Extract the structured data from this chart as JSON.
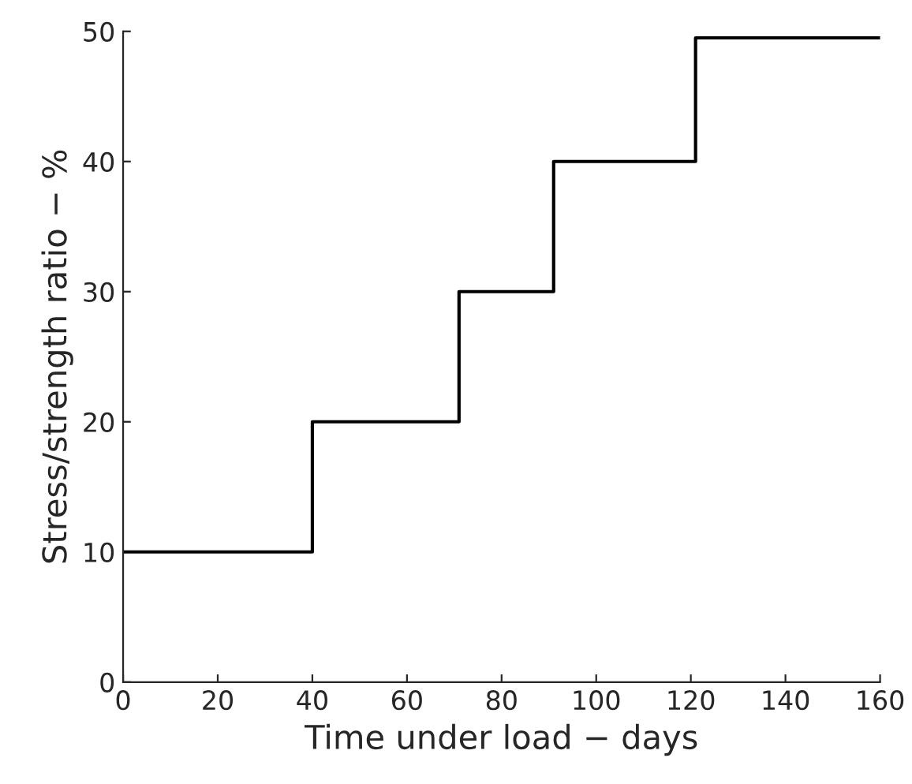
{
  "chart_data": {
    "type": "step",
    "xlabel": "Time under load − days",
    "ylabel": "Stress/strength ratio − %",
    "x": [
      0,
      40,
      71,
      91,
      121,
      160
    ],
    "values": [
      10,
      20,
      30,
      40,
      49.5,
      49.5
    ],
    "color": "#000000",
    "xlim": [
      0,
      160
    ],
    "xticks": [
      0,
      20,
      40,
      60,
      80,
      100,
      120,
      140,
      160
    ],
    "ylim": [
      0,
      50
    ],
    "yticks": [
      0,
      10,
      20,
      30,
      40,
      50
    ],
    "grid": false
  }
}
